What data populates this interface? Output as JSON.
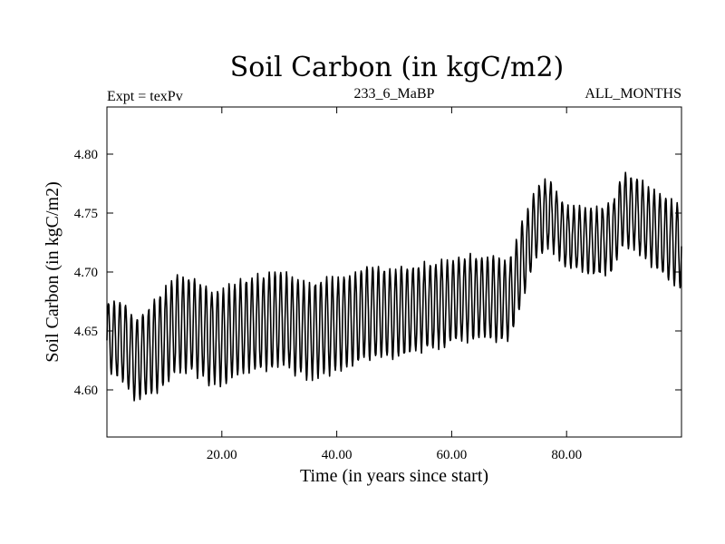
{
  "chart_data": {
    "type": "line",
    "title": "Soil Carbon (in kgC/m2)",
    "subtitle_left": "Expt = texPv",
    "subtitle_center": "233_6_MaBP",
    "subtitle_right": "ALL_MONTHS",
    "xlabel": "Time (in years since start)",
    "ylabel": "Soil Carbon (in kgC/m2)",
    "xlim": [
      0,
      100
    ],
    "ylim": [
      4.56,
      4.84
    ],
    "xticks": [
      20,
      40,
      60,
      80
    ],
    "xtick_labels": [
      "20.00",
      "40.00",
      "60.00",
      "80.00"
    ],
    "yticks": [
      4.6,
      4.65,
      4.7,
      4.75,
      4.8
    ],
    "ytick_labels": [
      "4.60",
      "4.65",
      "4.70",
      "4.75",
      "4.80"
    ],
    "grid": false,
    "series": [
      {
        "name": "Soil Carbon",
        "color": "#000000",
        "sampling": "monthly, seasonal oscillation about the baseline",
        "baseline_x": [
          0,
          3,
          5,
          8,
          12,
          15,
          18,
          20,
          25,
          30,
          35,
          40,
          45,
          50,
          55,
          60,
          65,
          70,
          72,
          75,
          77,
          80,
          85,
          88,
          90,
          93,
          97,
          100
        ],
        "baseline_y": [
          4.645,
          4.64,
          4.625,
          4.635,
          4.655,
          4.655,
          4.645,
          4.645,
          4.655,
          4.66,
          4.65,
          4.655,
          4.665,
          4.665,
          4.67,
          4.675,
          4.68,
          4.675,
          4.705,
          4.745,
          4.75,
          4.73,
          4.725,
          4.73,
          4.755,
          4.745,
          4.73,
          4.72
        ],
        "amplitude_x": [
          0,
          10,
          20,
          30,
          40,
          50,
          60,
          70,
          80,
          90,
          100
        ],
        "amplitude_y": [
          0.03,
          0.04,
          0.04,
          0.04,
          0.04,
          0.038,
          0.035,
          0.035,
          0.025,
          0.03,
          0.035
        ]
      }
    ]
  }
}
